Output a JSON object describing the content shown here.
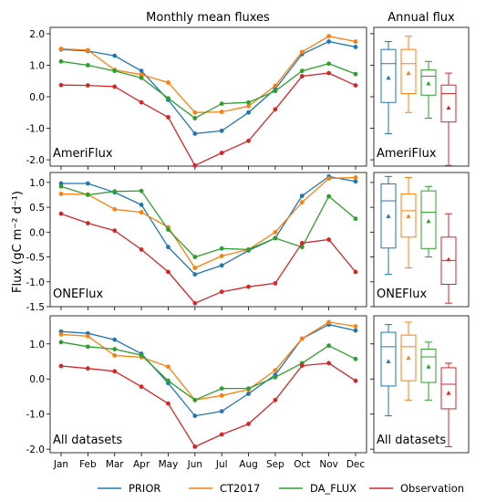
{
  "chart_data": [
    {
      "type": "line",
      "title": "Monthly mean fluxes",
      "ylabel": "Flux (gC m⁻² d⁻¹)",
      "panel_label": "AmeriFlux",
      "categories": [
        "Jan",
        "Feb",
        "Mar",
        "Apr",
        "May",
        "Jun",
        "Jul",
        "Aug",
        "Sep",
        "Oct",
        "Nov",
        "Dec"
      ],
      "ylim": [
        -2.2,
        2.2
      ],
      "yticks": [
        2.0,
        1.0,
        0.0,
        -1.0,
        -2.0
      ],
      "ytick_labels": [
        "2.0",
        "1.0",
        "0.0",
        "-1.0",
        "-2.0"
      ],
      "series": [
        {
          "name": "PRIOR",
          "values": [
            1.5,
            1.45,
            1.3,
            0.82,
            -0.1,
            -1.17,
            -1.08,
            -0.5,
            0.25,
            1.35,
            1.75,
            1.58
          ]
        },
        {
          "name": "CT2017",
          "values": [
            1.52,
            1.48,
            0.85,
            0.7,
            0.45,
            -0.5,
            -0.48,
            -0.3,
            0.35,
            1.42,
            1.92,
            1.75
          ]
        },
        {
          "name": "DA_FLUX",
          "values": [
            1.12,
            1.0,
            0.82,
            0.6,
            -0.05,
            -0.68,
            -0.22,
            -0.18,
            0.18,
            0.82,
            1.05,
            0.72
          ]
        },
        {
          "name": "Observation",
          "values": [
            0.37,
            0.36,
            0.32,
            -0.18,
            -0.65,
            -2.18,
            -1.78,
            -1.4,
            -0.4,
            0.65,
            0.75,
            0.36
          ]
        }
      ]
    },
    {
      "type": "box",
      "title": "Annual flux",
      "panel_label": "AmeriFlux",
      "ylim": [
        -2.2,
        2.2
      ],
      "series": [
        {
          "name": "PRIOR",
          "whisker_low": -1.17,
          "q1": -0.18,
          "median": 1.05,
          "q3": 1.5,
          "whisker_high": 1.75,
          "mean": 0.6
        },
        {
          "name": "CT2017",
          "whisker_low": -0.5,
          "q1": 0.1,
          "median": 1.05,
          "q3": 1.5,
          "whisker_high": 1.92,
          "mean": 0.75
        },
        {
          "name": "DA_FLUX",
          "whisker_low": -0.68,
          "q1": 0.05,
          "median": 0.65,
          "q3": 0.85,
          "whisker_high": 1.12,
          "mean": 0.42
        },
        {
          "name": "Observation",
          "whisker_low": -2.18,
          "q1": -0.8,
          "median": 0.1,
          "q3": 0.37,
          "whisker_high": 0.75,
          "mean": -0.35
        }
      ]
    },
    {
      "type": "line",
      "panel_label": "ONEFlux",
      "categories": [
        "Jan",
        "Feb",
        "Mar",
        "Apr",
        "May",
        "Jun",
        "Jul",
        "Aug",
        "Sep",
        "Oct",
        "Nov",
        "Dec"
      ],
      "ylim": [
        -1.5,
        1.2
      ],
      "yticks": [
        1.0,
        0.5,
        0.0,
        -0.5,
        -1.0,
        -1.5
      ],
      "ytick_labels": [
        "1.0",
        "0.5",
        "0.0",
        "-0.5",
        "-1.0",
        "-1.5"
      ],
      "series": [
        {
          "name": "PRIOR",
          "values": [
            0.98,
            0.98,
            0.8,
            0.55,
            -0.3,
            -0.85,
            -0.67,
            -0.37,
            -0.12,
            0.73,
            1.12,
            1.02
          ]
        },
        {
          "name": "CT2017",
          "values": [
            0.77,
            0.76,
            0.46,
            0.4,
            0.1,
            -0.72,
            -0.48,
            -0.35,
            0.0,
            0.6,
            1.08,
            1.1
          ]
        },
        {
          "name": "DA_FLUX",
          "values": [
            0.92,
            0.75,
            0.82,
            0.83,
            0.05,
            -0.5,
            -0.33,
            -0.35,
            -0.12,
            -0.3,
            0.72,
            0.27
          ]
        },
        {
          "name": "Observation",
          "values": [
            0.37,
            0.18,
            0.03,
            -0.35,
            -0.8,
            -1.43,
            -1.2,
            -1.1,
            -1.03,
            -0.22,
            -0.15,
            -0.8
          ]
        }
      ]
    },
    {
      "type": "box",
      "panel_label": "ONEFlux",
      "ylim": [
        -1.5,
        1.2
      ],
      "series": [
        {
          "name": "PRIOR",
          "whisker_low": -0.85,
          "q1": -0.32,
          "median": 0.63,
          "q3": 0.97,
          "whisker_high": 1.12,
          "mean": 0.32
        },
        {
          "name": "CT2017",
          "whisker_low": -0.72,
          "q1": -0.1,
          "median": 0.43,
          "q3": 0.77,
          "whisker_high": 1.1,
          "mean": 0.32
        },
        {
          "name": "DA_FLUX",
          "whisker_low": -0.5,
          "q1": -0.33,
          "median": 0.4,
          "q3": 0.83,
          "whisker_high": 0.92,
          "mean": 0.22
        },
        {
          "name": "Observation",
          "whisker_low": -1.43,
          "q1": -1.05,
          "median": -0.57,
          "q3": -0.1,
          "whisker_high": 0.37,
          "mean": -0.55
        }
      ]
    },
    {
      "type": "line",
      "panel_label": "All datasets",
      "categories": [
        "Jan",
        "Feb",
        "Mar",
        "Apr",
        "May",
        "Jun",
        "Jul",
        "Aug",
        "Sep",
        "Oct",
        "Nov",
        "Dec"
      ],
      "ylim": [
        -2.1,
        1.8
      ],
      "yticks": [
        1.0,
        0.0,
        -1.0,
        -2.0
      ],
      "ytick_labels": [
        "1.0",
        "0.0",
        "-1.0",
        "-2.0"
      ],
      "series": [
        {
          "name": "PRIOR",
          "values": [
            1.35,
            1.3,
            1.12,
            0.72,
            -0.12,
            -1.05,
            -0.92,
            -0.42,
            0.12,
            1.15,
            1.55,
            1.38
          ]
        },
        {
          "name": "CT2017",
          "values": [
            1.27,
            1.22,
            0.67,
            0.62,
            0.35,
            -0.6,
            -0.47,
            -0.3,
            0.25,
            1.15,
            1.62,
            1.5
          ]
        },
        {
          "name": "DA_FLUX",
          "values": [
            1.05,
            0.92,
            0.85,
            0.68,
            -0.05,
            -0.6,
            -0.27,
            -0.27,
            0.05,
            0.45,
            0.95,
            0.57
          ]
        },
        {
          "name": "Observation",
          "values": [
            0.37,
            0.3,
            0.22,
            -0.22,
            -0.7,
            -1.93,
            -1.58,
            -1.28,
            -0.6,
            0.38,
            0.45,
            -0.05
          ]
        }
      ]
    },
    {
      "type": "box",
      "panel_label": "All datasets",
      "ylim": [
        -2.1,
        1.8
      ],
      "series": [
        {
          "name": "PRIOR",
          "whisker_low": -1.05,
          "q1": -0.2,
          "median": 0.92,
          "q3": 1.33,
          "whisker_high": 1.55,
          "mean": 0.5
        },
        {
          "name": "CT2017",
          "whisker_low": -0.6,
          "q1": -0.05,
          "median": 0.92,
          "q3": 1.25,
          "whisker_high": 1.62,
          "mean": 0.6
        },
        {
          "name": "DA_FLUX",
          "whisker_low": -0.6,
          "q1": -0.1,
          "median": 0.63,
          "q3": 0.85,
          "whisker_high": 1.05,
          "mean": 0.35
        },
        {
          "name": "Observation",
          "whisker_low": -1.93,
          "q1": -0.85,
          "median": -0.15,
          "q3": 0.32,
          "whisker_high": 0.45,
          "mean": -0.4
        }
      ]
    }
  ],
  "legend": {
    "placement": "bottom",
    "items": [
      {
        "name": "PRIOR",
        "color": "#1f77b4"
      },
      {
        "name": "CT2017",
        "color": "#ff7f0e"
      },
      {
        "name": "DA_FLUX",
        "color": "#2ca02c"
      },
      {
        "name": "Observation",
        "color": "#d62728"
      }
    ]
  },
  "colors": {
    "PRIOR": "#1f77b4",
    "CT2017": "#ff7f0e",
    "DA_FLUX": "#2ca02c",
    "Observation": "#d62728"
  }
}
